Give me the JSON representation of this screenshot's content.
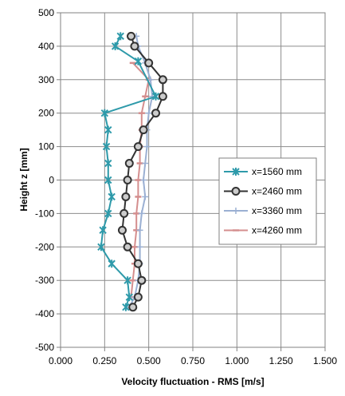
{
  "chart_data": {
    "type": "line",
    "title": "",
    "xlabel": "Velocity fluctuation - RMS [m/s]",
    "ylabel": "Height z [mm]",
    "xlim": [
      0,
      1.5
    ],
    "ylim": [
      -500,
      500
    ],
    "x_ticks": [
      "0.000",
      "0.250",
      "0.500",
      "0.750",
      "1.000",
      "1.250",
      "1.500"
    ],
    "y_ticks": [
      "500",
      "400",
      "300",
      "200",
      "100",
      "0",
      "-100",
      "-200",
      "-300",
      "-400",
      "-500"
    ],
    "grid": true,
    "legend_position": "right",
    "series": [
      {
        "name": "x=1560 mm",
        "color": "#2E9AAA",
        "marker": "star",
        "points": [
          [
            0.34,
            430
          ],
          [
            0.31,
            400
          ],
          [
            0.44,
            355
          ],
          [
            0.54,
            250
          ],
          [
            0.25,
            200
          ],
          [
            0.27,
            150
          ],
          [
            0.26,
            100
          ],
          [
            0.27,
            50
          ],
          [
            0.27,
            0
          ],
          [
            0.29,
            -50
          ],
          [
            0.27,
            -100
          ],
          [
            0.24,
            -150
          ],
          [
            0.23,
            -200
          ],
          [
            0.29,
            -250
          ],
          [
            0.38,
            -300
          ],
          [
            0.39,
            -350
          ],
          [
            0.37,
            -380
          ]
        ]
      },
      {
        "name": "x=2460 mm",
        "color": "#333333",
        "marker": "circle",
        "points": [
          [
            0.4,
            430
          ],
          [
            0.42,
            400
          ],
          [
            0.5,
            350
          ],
          [
            0.58,
            300
          ],
          [
            0.58,
            250
          ],
          [
            0.54,
            200
          ],
          [
            0.47,
            150
          ],
          [
            0.44,
            100
          ],
          [
            0.39,
            50
          ],
          [
            0.38,
            0
          ],
          [
            0.37,
            -50
          ],
          [
            0.36,
            -100
          ],
          [
            0.35,
            -150
          ],
          [
            0.38,
            -200
          ],
          [
            0.44,
            -250
          ],
          [
            0.46,
            -300
          ],
          [
            0.44,
            -350
          ],
          [
            0.41,
            -380
          ]
        ]
      },
      {
        "name": "x=3360 mm",
        "color": "#9BB0D3",
        "marker": "plus",
        "points": [
          [
            0.43,
            430
          ],
          [
            0.44,
            400
          ],
          [
            0.48,
            350
          ],
          [
            0.51,
            300
          ],
          [
            0.52,
            250
          ],
          [
            0.5,
            200
          ],
          [
            0.49,
            150
          ],
          [
            0.49,
            100
          ],
          [
            0.48,
            50
          ],
          [
            0.47,
            0
          ],
          [
            0.48,
            -50
          ],
          [
            0.46,
            -100
          ],
          [
            0.45,
            -150
          ],
          [
            0.45,
            -200
          ],
          [
            0.45,
            -250
          ],
          [
            0.44,
            -300
          ],
          [
            0.42,
            -350
          ],
          [
            0.39,
            -380
          ]
        ]
      },
      {
        "name": "x=4260 mm",
        "color": "#D48E8E",
        "marker": "dash",
        "points": [
          [
            0.41,
            350
          ],
          [
            0.5,
            300
          ],
          [
            0.48,
            250
          ],
          [
            0.46,
            200
          ],
          [
            0.46,
            150
          ],
          [
            0.45,
            100
          ],
          [
            0.45,
            50
          ],
          [
            0.44,
            0
          ],
          [
            0.44,
            -50
          ],
          [
            0.43,
            -100
          ],
          [
            0.43,
            -150
          ],
          [
            0.42,
            -200
          ],
          [
            0.42,
            -250
          ],
          [
            0.41,
            -300
          ],
          [
            0.4,
            -350
          ]
        ]
      }
    ]
  }
}
